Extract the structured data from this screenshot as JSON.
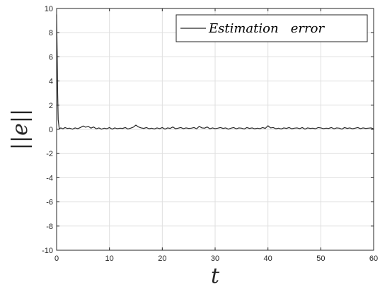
{
  "chart_data": {
    "type": "line",
    "title": "",
    "xlabel": "t",
    "ylabel": "||e||",
    "xlim": [
      0,
      60
    ],
    "ylim": [
      -10,
      10
    ],
    "xticks": [
      0,
      10,
      20,
      30,
      40,
      50,
      60
    ],
    "yticks": [
      -10,
      -8,
      -6,
      -4,
      -2,
      0,
      2,
      4,
      6,
      8,
      10
    ],
    "grid": true,
    "legend_position": "top-right",
    "series": [
      {
        "name": "Estimation   error",
        "color": "#262626",
        "x": [
          0,
          0.1,
          0.2,
          0.3,
          0.5,
          0.8,
          1.2,
          1.6,
          2.0,
          2.5,
          3.0,
          3.5,
          4.0,
          4.5,
          5.0,
          5.5,
          6.0,
          6.5,
          7.0,
          7.5,
          8.0,
          8.5,
          9.0,
          9.5,
          10.0,
          10.5,
          11.0,
          11.5,
          12.0,
          12.5,
          13.0,
          13.5,
          14.0,
          14.5,
          15.0,
          15.5,
          16.0,
          16.5,
          17.0,
          17.5,
          18.0,
          18.5,
          19.0,
          19.5,
          20.0,
          20.5,
          21.0,
          21.5,
          22.0,
          22.5,
          23.0,
          23.5,
          24.0,
          24.5,
          25.0,
          25.5,
          26.0,
          26.5,
          27.0,
          27.5,
          28.0,
          28.5,
          29.0,
          29.5,
          30.0,
          30.5,
          31.0,
          31.5,
          32.0,
          32.5,
          33.0,
          33.5,
          34.0,
          34.5,
          35.0,
          35.5,
          36.0,
          36.5,
          37.0,
          37.5,
          38.0,
          38.5,
          39.0,
          39.5,
          40.0,
          40.5,
          41.0,
          41.5,
          42.0,
          42.5,
          43.0,
          43.5,
          44.0,
          44.5,
          45.0,
          45.5,
          46.0,
          46.5,
          47.0,
          47.5,
          48.0,
          48.5,
          49.0,
          49.5,
          50.0,
          50.5,
          51.0,
          51.5,
          52.0,
          52.5,
          53.0,
          53.5,
          54.0,
          54.5,
          55.0,
          55.5,
          56.0,
          56.5,
          57.0,
          57.5,
          58.0,
          58.5,
          59.0,
          59.5,
          60.0
        ],
        "y": [
          9.5,
          6.5,
          3.0,
          0.8,
          0.05,
          0.12,
          0.05,
          0.15,
          0.08,
          0.1,
          0.02,
          0.12,
          0.06,
          0.15,
          0.28,
          0.18,
          0.25,
          0.1,
          0.2,
          0.05,
          0.12,
          0.02,
          0.1,
          0.05,
          0.15,
          0.02,
          0.12,
          0.06,
          0.1,
          0.08,
          0.15,
          0.03,
          0.1,
          0.18,
          0.35,
          0.2,
          0.12,
          0.08,
          0.15,
          0.05,
          0.1,
          0.03,
          0.12,
          0.06,
          0.15,
          0.02,
          0.12,
          0.08,
          0.2,
          0.05,
          0.1,
          0.15,
          0.06,
          0.12,
          0.08,
          0.1,
          0.15,
          0.05,
          0.25,
          0.12,
          0.1,
          0.2,
          0.05,
          0.12,
          0.06,
          0.1,
          0.15,
          0.08,
          0.12,
          0.02,
          0.1,
          0.15,
          0.05,
          0.12,
          0.1,
          0.03,
          0.15,
          0.08,
          0.12,
          0.05,
          0.1,
          0.06,
          0.15,
          0.08,
          0.3,
          0.12,
          0.15,
          0.05,
          0.1,
          0.03,
          0.12,
          0.08,
          0.15,
          0.05,
          0.1,
          0.12,
          0.06,
          0.15,
          0.02,
          0.12,
          0.08,
          0.1,
          0.05,
          0.15,
          0.12,
          0.06,
          0.1,
          0.08,
          0.15,
          0.05,
          0.12,
          0.1,
          0.02,
          0.15,
          0.08,
          0.12,
          0.05,
          0.1,
          0.15,
          0.06,
          0.12,
          0.08,
          0.1,
          0.12,
          0.05
        ]
      }
    ]
  }
}
